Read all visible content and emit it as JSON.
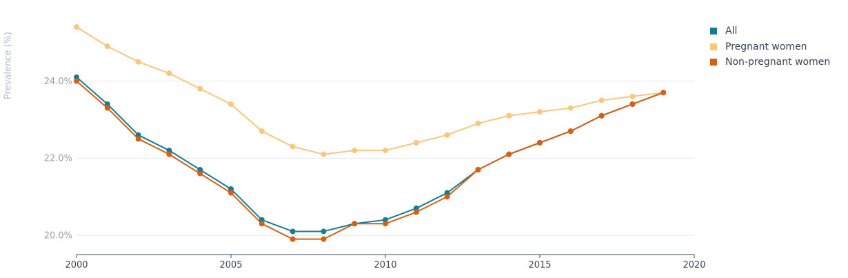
{
  "chart_data": {
    "type": "line",
    "ylabel": "Prevalence (%)",
    "xlabel": "",
    "title": "",
    "xlim": [
      2000,
      2020
    ],
    "ylim": [
      19.5,
      25.6
    ],
    "x_ticks": [
      2000,
      2005,
      2010,
      2015,
      2020
    ],
    "y_ticks": [
      20,
      22,
      24
    ],
    "y_tick_labels": [
      "20.0%",
      "22.0%",
      "24.0%"
    ],
    "grid": "horizontal",
    "legend_position": "top-right",
    "x": [
      2000,
      2001,
      2002,
      2003,
      2004,
      2005,
      2006,
      2007,
      2008,
      2009,
      2010,
      2011,
      2012,
      2013,
      2014,
      2015,
      2016,
      2017,
      2018,
      2019
    ],
    "series": [
      {
        "name": "All",
        "color": "#137d96",
        "values": [
          24.1,
          23.4,
          22.6,
          22.2,
          21.7,
          21.2,
          20.4,
          20.1,
          20.1,
          20.3,
          20.4,
          20.7,
          21.1,
          21.7,
          22.1,
          22.4,
          22.7,
          23.1,
          23.4,
          23.7
        ]
      },
      {
        "name": "Pregnant women",
        "color": "#f9c67c",
        "values": [
          25.4,
          24.9,
          24.5,
          24.2,
          23.8,
          23.4,
          22.7,
          22.3,
          22.1,
          22.2,
          22.2,
          22.4,
          22.6,
          22.9,
          23.1,
          23.2,
          23.3,
          23.5,
          23.6,
          23.7
        ]
      },
      {
        "name": "Non-pregnant women",
        "color": "#d95f0e",
        "values": [
          24.0,
          23.3,
          22.5,
          22.1,
          21.6,
          21.1,
          20.3,
          19.9,
          19.9,
          20.3,
          20.3,
          20.6,
          21.0,
          21.7,
          22.1,
          22.4,
          22.7,
          23.1,
          23.4,
          23.7
        ]
      }
    ]
  }
}
